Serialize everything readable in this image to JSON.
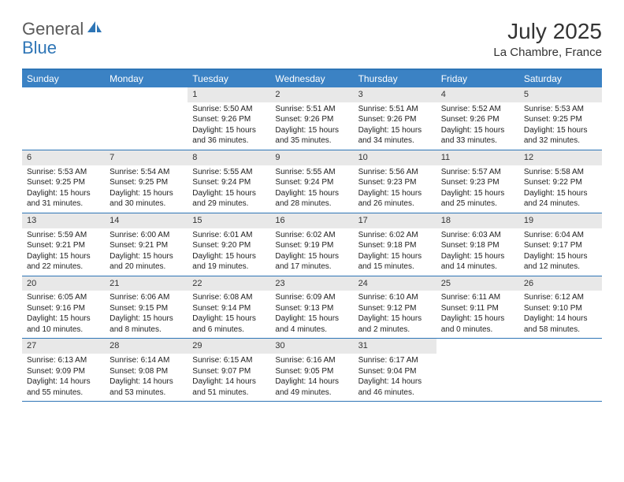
{
  "brand": {
    "text_general": "General",
    "text_blue": "Blue",
    "logo_color": "#2e75b6"
  },
  "title": {
    "month": "July 2025",
    "location": "La Chambre, France"
  },
  "colors": {
    "header_bar": "#3b82c4",
    "border": "#2e75b6",
    "day_number_bg": "#e8e8e8",
    "text": "#222222",
    "weekday_text": "#ffffff"
  },
  "typography": {
    "month_title_fontsize": 28,
    "location_fontsize": 15,
    "weekday_fontsize": 12,
    "daynum_fontsize": 11,
    "body_fontsize": 10
  },
  "weekdays": [
    "Sunday",
    "Monday",
    "Tuesday",
    "Wednesday",
    "Thursday",
    "Friday",
    "Saturday"
  ],
  "weeks": [
    [
      {
        "empty": true
      },
      {
        "empty": true
      },
      {
        "num": "1",
        "sunrise": "Sunrise: 5:50 AM",
        "sunset": "Sunset: 9:26 PM",
        "daylight": "Daylight: 15 hours and 36 minutes."
      },
      {
        "num": "2",
        "sunrise": "Sunrise: 5:51 AM",
        "sunset": "Sunset: 9:26 PM",
        "daylight": "Daylight: 15 hours and 35 minutes."
      },
      {
        "num": "3",
        "sunrise": "Sunrise: 5:51 AM",
        "sunset": "Sunset: 9:26 PM",
        "daylight": "Daylight: 15 hours and 34 minutes."
      },
      {
        "num": "4",
        "sunrise": "Sunrise: 5:52 AM",
        "sunset": "Sunset: 9:26 PM",
        "daylight": "Daylight: 15 hours and 33 minutes."
      },
      {
        "num": "5",
        "sunrise": "Sunrise: 5:53 AM",
        "sunset": "Sunset: 9:25 PM",
        "daylight": "Daylight: 15 hours and 32 minutes."
      }
    ],
    [
      {
        "num": "6",
        "sunrise": "Sunrise: 5:53 AM",
        "sunset": "Sunset: 9:25 PM",
        "daylight": "Daylight: 15 hours and 31 minutes."
      },
      {
        "num": "7",
        "sunrise": "Sunrise: 5:54 AM",
        "sunset": "Sunset: 9:25 PM",
        "daylight": "Daylight: 15 hours and 30 minutes."
      },
      {
        "num": "8",
        "sunrise": "Sunrise: 5:55 AM",
        "sunset": "Sunset: 9:24 PM",
        "daylight": "Daylight: 15 hours and 29 minutes."
      },
      {
        "num": "9",
        "sunrise": "Sunrise: 5:55 AM",
        "sunset": "Sunset: 9:24 PM",
        "daylight": "Daylight: 15 hours and 28 minutes."
      },
      {
        "num": "10",
        "sunrise": "Sunrise: 5:56 AM",
        "sunset": "Sunset: 9:23 PM",
        "daylight": "Daylight: 15 hours and 26 minutes."
      },
      {
        "num": "11",
        "sunrise": "Sunrise: 5:57 AM",
        "sunset": "Sunset: 9:23 PM",
        "daylight": "Daylight: 15 hours and 25 minutes."
      },
      {
        "num": "12",
        "sunrise": "Sunrise: 5:58 AM",
        "sunset": "Sunset: 9:22 PM",
        "daylight": "Daylight: 15 hours and 24 minutes."
      }
    ],
    [
      {
        "num": "13",
        "sunrise": "Sunrise: 5:59 AM",
        "sunset": "Sunset: 9:21 PM",
        "daylight": "Daylight: 15 hours and 22 minutes."
      },
      {
        "num": "14",
        "sunrise": "Sunrise: 6:00 AM",
        "sunset": "Sunset: 9:21 PM",
        "daylight": "Daylight: 15 hours and 20 minutes."
      },
      {
        "num": "15",
        "sunrise": "Sunrise: 6:01 AM",
        "sunset": "Sunset: 9:20 PM",
        "daylight": "Daylight: 15 hours and 19 minutes."
      },
      {
        "num": "16",
        "sunrise": "Sunrise: 6:02 AM",
        "sunset": "Sunset: 9:19 PM",
        "daylight": "Daylight: 15 hours and 17 minutes."
      },
      {
        "num": "17",
        "sunrise": "Sunrise: 6:02 AM",
        "sunset": "Sunset: 9:18 PM",
        "daylight": "Daylight: 15 hours and 15 minutes."
      },
      {
        "num": "18",
        "sunrise": "Sunrise: 6:03 AM",
        "sunset": "Sunset: 9:18 PM",
        "daylight": "Daylight: 15 hours and 14 minutes."
      },
      {
        "num": "19",
        "sunrise": "Sunrise: 6:04 AM",
        "sunset": "Sunset: 9:17 PM",
        "daylight": "Daylight: 15 hours and 12 minutes."
      }
    ],
    [
      {
        "num": "20",
        "sunrise": "Sunrise: 6:05 AM",
        "sunset": "Sunset: 9:16 PM",
        "daylight": "Daylight: 15 hours and 10 minutes."
      },
      {
        "num": "21",
        "sunrise": "Sunrise: 6:06 AM",
        "sunset": "Sunset: 9:15 PM",
        "daylight": "Daylight: 15 hours and 8 minutes."
      },
      {
        "num": "22",
        "sunrise": "Sunrise: 6:08 AM",
        "sunset": "Sunset: 9:14 PM",
        "daylight": "Daylight: 15 hours and 6 minutes."
      },
      {
        "num": "23",
        "sunrise": "Sunrise: 6:09 AM",
        "sunset": "Sunset: 9:13 PM",
        "daylight": "Daylight: 15 hours and 4 minutes."
      },
      {
        "num": "24",
        "sunrise": "Sunrise: 6:10 AM",
        "sunset": "Sunset: 9:12 PM",
        "daylight": "Daylight: 15 hours and 2 minutes."
      },
      {
        "num": "25",
        "sunrise": "Sunrise: 6:11 AM",
        "sunset": "Sunset: 9:11 PM",
        "daylight": "Daylight: 15 hours and 0 minutes."
      },
      {
        "num": "26",
        "sunrise": "Sunrise: 6:12 AM",
        "sunset": "Sunset: 9:10 PM",
        "daylight": "Daylight: 14 hours and 58 minutes."
      }
    ],
    [
      {
        "num": "27",
        "sunrise": "Sunrise: 6:13 AM",
        "sunset": "Sunset: 9:09 PM",
        "daylight": "Daylight: 14 hours and 55 minutes."
      },
      {
        "num": "28",
        "sunrise": "Sunrise: 6:14 AM",
        "sunset": "Sunset: 9:08 PM",
        "daylight": "Daylight: 14 hours and 53 minutes."
      },
      {
        "num": "29",
        "sunrise": "Sunrise: 6:15 AM",
        "sunset": "Sunset: 9:07 PM",
        "daylight": "Daylight: 14 hours and 51 minutes."
      },
      {
        "num": "30",
        "sunrise": "Sunrise: 6:16 AM",
        "sunset": "Sunset: 9:05 PM",
        "daylight": "Daylight: 14 hours and 49 minutes."
      },
      {
        "num": "31",
        "sunrise": "Sunrise: 6:17 AM",
        "sunset": "Sunset: 9:04 PM",
        "daylight": "Daylight: 14 hours and 46 minutes."
      },
      {
        "empty": true
      },
      {
        "empty": true
      }
    ]
  ]
}
